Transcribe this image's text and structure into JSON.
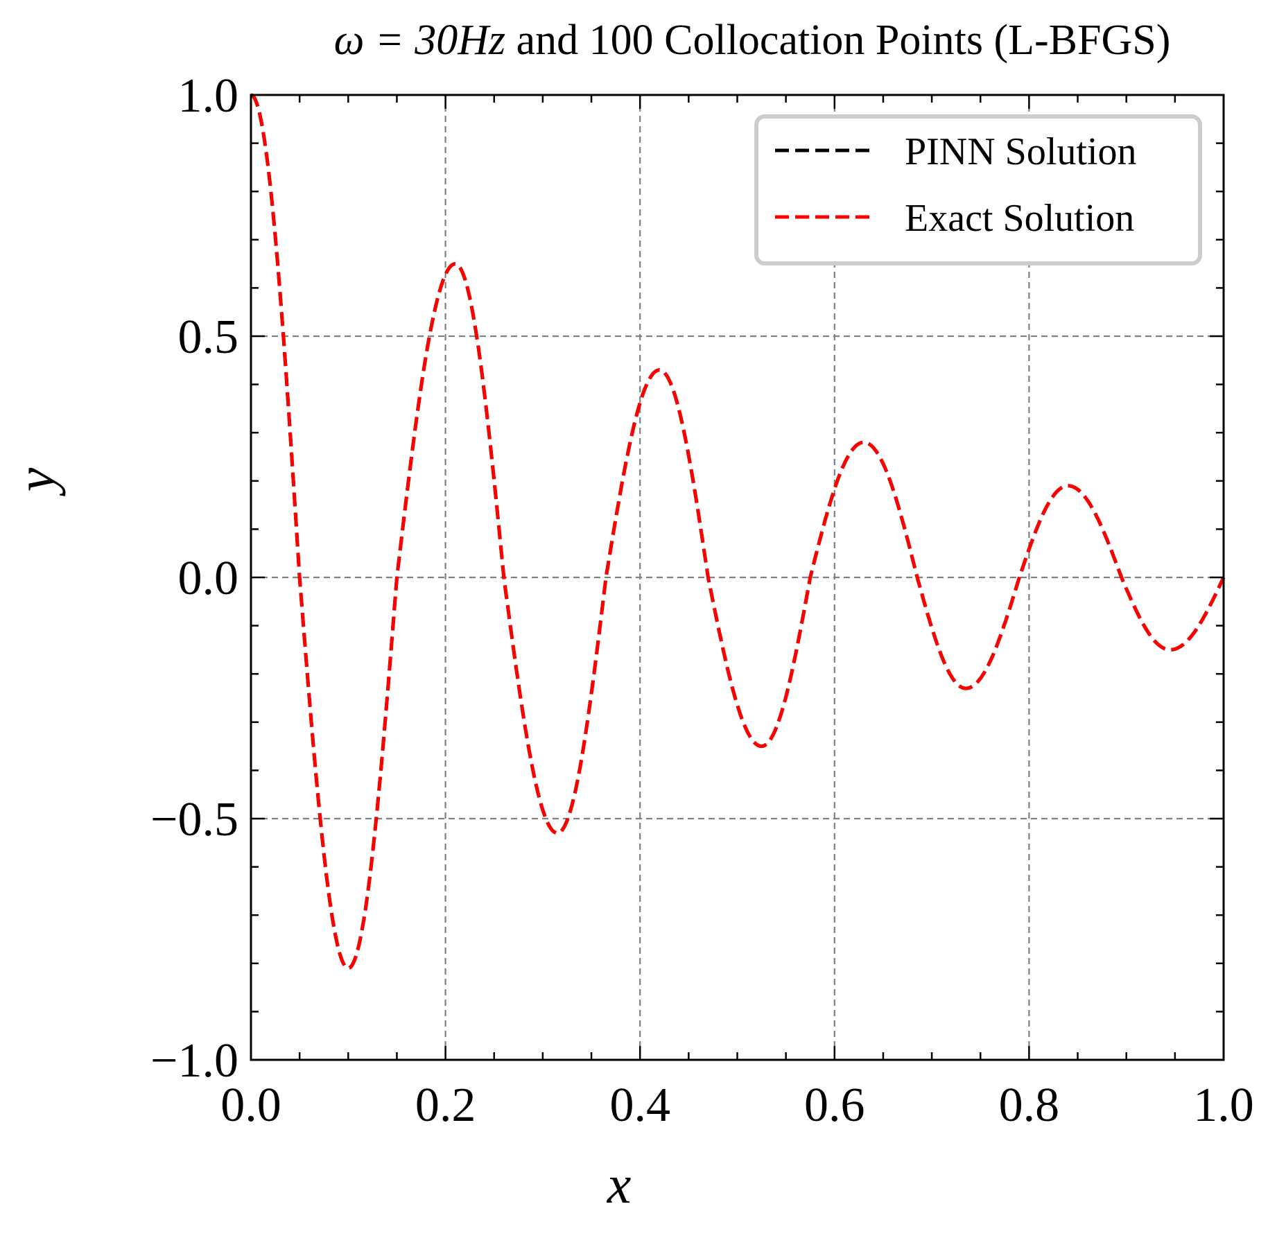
{
  "chart_data": {
    "type": "line",
    "title": {
      "math": "ω = 30Hz",
      "rest": " and 100 Collocation Points (L-BFGS)"
    },
    "xlabel": "x",
    "ylabel": "y",
    "xlim": [
      0.0,
      1.0
    ],
    "ylim": [
      -1.0,
      1.0
    ],
    "xticks": [
      0.0,
      0.2,
      0.4,
      0.6,
      0.8,
      1.0
    ],
    "xtick_labels": [
      "0.0",
      "0.2",
      "0.4",
      "0.6",
      "0.8",
      "1.0"
    ],
    "yticks": [
      -1.0,
      -0.5,
      0.0,
      0.5,
      1.0
    ],
    "ytick_labels": [
      "−1.0",
      "−0.5",
      "0.0",
      "0.5",
      "1.0"
    ],
    "x_minor_step": 0.05,
    "y_minor_step": 0.1,
    "grid": true,
    "legend_position": "top-right",
    "series": [
      {
        "name": "PINN Solution",
        "color": "#000000",
        "style": "dashed",
        "x": [
          0.0,
          0.05,
          0.1,
          0.15,
          0.21,
          0.26,
          0.315,
          0.365,
          0.42,
          0.47,
          0.525,
          0.575,
          0.63,
          0.685,
          0.735,
          0.79,
          0.84,
          0.895,
          0.945,
          1.0
        ],
        "y": [
          1.0,
          0.0,
          -0.81,
          0.0,
          0.65,
          0.0,
          -0.53,
          0.0,
          0.43,
          0.0,
          -0.35,
          0.0,
          0.28,
          0.0,
          -0.23,
          0.0,
          0.19,
          0.0,
          -0.15,
          0.0
        ]
      },
      {
        "name": "Exact Solution",
        "color": "#ff0000",
        "style": "dashed",
        "x": [
          0.0,
          0.05,
          0.1,
          0.15,
          0.21,
          0.26,
          0.315,
          0.365,
          0.42,
          0.47,
          0.525,
          0.575,
          0.63,
          0.685,
          0.735,
          0.79,
          0.84,
          0.895,
          0.945,
          1.0
        ],
        "y": [
          1.0,
          0.0,
          -0.81,
          0.0,
          0.65,
          0.0,
          -0.53,
          0.0,
          0.43,
          0.0,
          -0.35,
          0.0,
          0.28,
          0.0,
          -0.23,
          0.0,
          0.19,
          0.0,
          -0.15,
          0.0
        ]
      }
    ]
  }
}
